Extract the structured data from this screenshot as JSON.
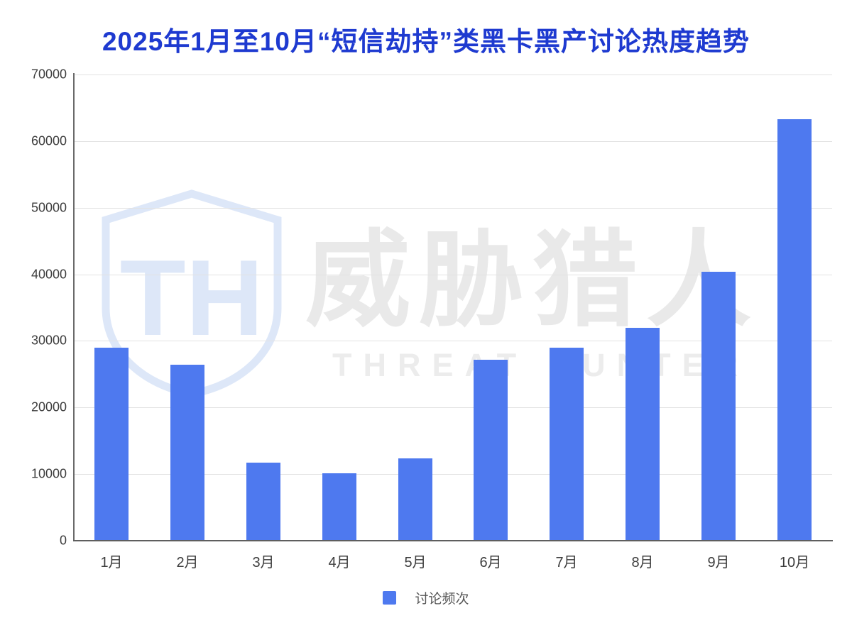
{
  "chart_data": {
    "type": "bar",
    "title": "2025年1月至10月“短信劫持”类黑卡黑产讨论热度趋势",
    "categories": [
      "1月",
      "2月",
      "3月",
      "4月",
      "5月",
      "6月",
      "7月",
      "8月",
      "9月",
      "10月"
    ],
    "series": [
      {
        "name": "讨论频次",
        "values": [
          29000,
          26400,
          11700,
          10100,
          12400,
          27200,
          29000,
          32000,
          40400,
          63300
        ]
      }
    ],
    "xlabel": "",
    "ylabel": "",
    "ylim": [
      0,
      70000
    ],
    "ytick_step": 10000,
    "yticks": [
      0,
      10000,
      20000,
      30000,
      40000,
      50000,
      60000,
      70000
    ],
    "grid": "horizontal",
    "legend_position": "bottom-center"
  },
  "watermark": {
    "logo": "threat-hunter-shield-logo",
    "monogram": "TH",
    "cn_text": "威胁猎人",
    "en_text": "THREAT HUNTER"
  },
  "colors": {
    "bar": "#4e79ef",
    "title": "#1e3ad0",
    "axis_label": "#3d3d3d",
    "legend_text": "#565656",
    "gridline": "#e2e2e2",
    "axis_line": "#5e5e5e",
    "watermark_gray": "#e9e9e9",
    "watermark_blue": "#dde7f8",
    "background": "#ffffff"
  }
}
